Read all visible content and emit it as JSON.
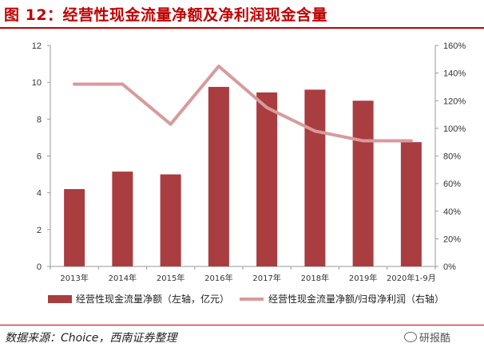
{
  "header": {
    "title": "图 12：经营性现金流量净额及净利润现金含量"
  },
  "footer": {
    "source": "数据来源：Choice，西南证券整理",
    "watermark": "研报酷"
  },
  "colors": {
    "bar": "#a93d40",
    "line": "#d89a9b",
    "title": "#c00000",
    "axis": "#9a9a9a"
  },
  "chart_data": {
    "type": "bar+line",
    "categories": [
      "2013年",
      "2014年",
      "2015年",
      "2016年",
      "2017年",
      "2018年",
      "2019年",
      "2020年1-9月"
    ],
    "series": [
      {
        "name": "经营性现金流量净额（左轴，亿元）",
        "type": "bar",
        "axis": "left",
        "values": [
          4.2,
          5.15,
          5.0,
          9.75,
          9.45,
          9.6,
          9.0,
          6.75
        ]
      },
      {
        "name": "经营性现金流量净额/归母净利润（右轴）",
        "type": "line",
        "axis": "right",
        "values": [
          132,
          132,
          103,
          145,
          115,
          98,
          91,
          91
        ]
      }
    ],
    "y_left": {
      "min": 0,
      "max": 12,
      "ticks": [
        "0",
        "2",
        "4",
        "6",
        "8",
        "10",
        "12"
      ]
    },
    "y_right": {
      "min": 0,
      "max": 160,
      "ticks": [
        "0%",
        "20%",
        "40%",
        "60%",
        "80%",
        "100%",
        "120%",
        "140%",
        "160%"
      ]
    },
    "grid": false,
    "legend": "bottom"
  }
}
